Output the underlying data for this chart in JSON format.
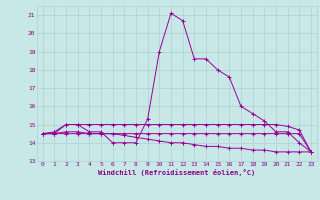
{
  "title": "",
  "xlabel": "Windchill (Refroidissement éolien,°C)",
  "ylabel": "",
  "bg_color": "#c8e8e8",
  "line_color": "#990099",
  "grid_color": "#b0d0d0",
  "text_color": "#880088",
  "xlim": [
    -0.5,
    23.5
  ],
  "ylim": [
    13,
    21.5
  ],
  "yticks": [
    13,
    14,
    15,
    16,
    17,
    18,
    19,
    20,
    21
  ],
  "xticks": [
    0,
    1,
    2,
    3,
    4,
    5,
    6,
    7,
    8,
    9,
    10,
    11,
    12,
    13,
    14,
    15,
    16,
    17,
    18,
    19,
    20,
    21,
    22,
    23
  ],
  "line1_x": [
    0,
    1,
    2,
    3,
    4,
    5,
    6,
    7,
    8,
    9,
    10,
    11,
    12,
    13,
    14,
    15,
    16,
    17,
    18,
    19,
    20,
    21,
    22,
    23
  ],
  "line1_y": [
    14.5,
    14.6,
    15.0,
    15.0,
    14.6,
    14.6,
    14.0,
    14.0,
    14.0,
    15.3,
    19.0,
    21.1,
    20.7,
    18.6,
    18.6,
    18.0,
    17.6,
    16.0,
    15.6,
    15.2,
    14.6,
    14.6,
    14.0,
    13.5
  ],
  "line2_x": [
    0,
    1,
    2,
    3,
    4,
    5,
    6,
    7,
    8,
    9,
    10,
    11,
    12,
    13,
    14,
    15,
    16,
    17,
    18,
    19,
    20,
    21,
    22,
    23
  ],
  "line2_y": [
    14.5,
    14.5,
    15.0,
    15.0,
    15.0,
    15.0,
    15.0,
    15.0,
    15.0,
    15.0,
    15.0,
    15.0,
    15.0,
    15.0,
    15.0,
    15.0,
    15.0,
    15.0,
    15.0,
    15.0,
    15.0,
    14.9,
    14.7,
    13.5
  ],
  "line3_x": [
    0,
    1,
    2,
    3,
    4,
    5,
    6,
    7,
    8,
    9,
    10,
    11,
    12,
    13,
    14,
    15,
    16,
    17,
    18,
    19,
    20,
    21,
    22,
    23
  ],
  "line3_y": [
    14.5,
    14.5,
    14.6,
    14.6,
    14.5,
    14.5,
    14.5,
    14.4,
    14.3,
    14.2,
    14.1,
    14.0,
    14.0,
    13.9,
    13.8,
    13.8,
    13.7,
    13.7,
    13.6,
    13.6,
    13.5,
    13.5,
    13.5,
    13.5
  ],
  "line4_x": [
    0,
    1,
    2,
    3,
    4,
    5,
    6,
    7,
    8,
    9,
    10,
    11,
    12,
    13,
    14,
    15,
    16,
    17,
    18,
    19,
    20,
    21,
    22,
    23
  ],
  "line4_y": [
    14.5,
    14.5,
    14.5,
    14.5,
    14.5,
    14.5,
    14.5,
    14.5,
    14.5,
    14.5,
    14.5,
    14.5,
    14.5,
    14.5,
    14.5,
    14.5,
    14.5,
    14.5,
    14.5,
    14.5,
    14.5,
    14.5,
    14.5,
    13.5
  ],
  "label_fontsize": 5.0,
  "tick_fontsize": 4.5
}
